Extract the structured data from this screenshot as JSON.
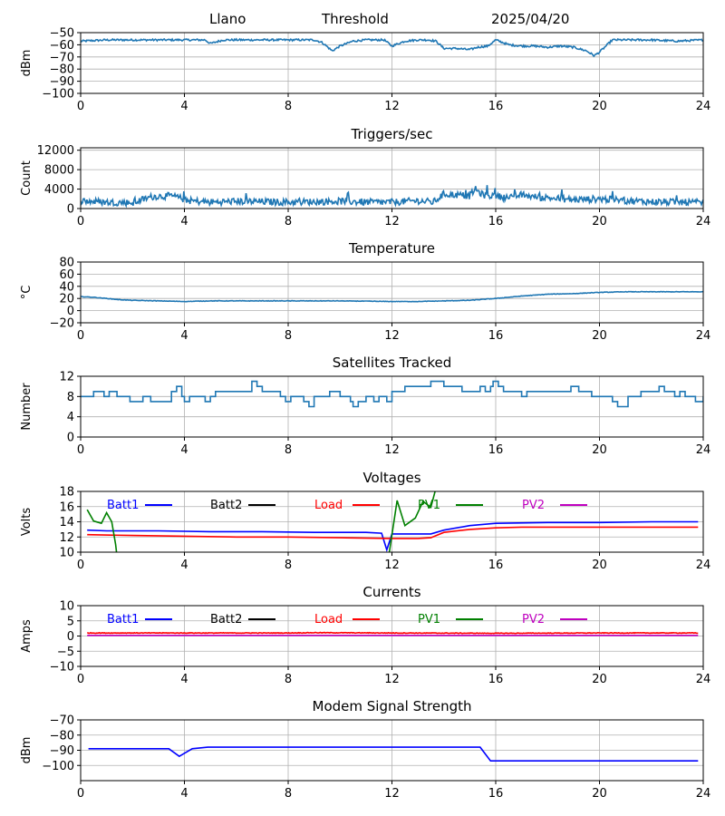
{
  "header": {
    "station": "Llano",
    "mode": "Threshold",
    "date": "2025/04/20"
  },
  "chart_data": [
    {
      "type": "line",
      "title": "",
      "ylabel": "dBm",
      "xlim": [
        0,
        24
      ],
      "ylim": [
        -100,
        -50
      ],
      "xticks": [
        0,
        4,
        8,
        12,
        16,
        20,
        24
      ],
      "yticks": [
        -50,
        -60,
        -70,
        -80,
        -90,
        -100
      ],
      "grid": true,
      "series": [
        {
          "color": "#1f77b4",
          "noise": 0.8,
          "x": [
            0,
            1,
            2,
            3,
            4,
            4.8,
            5,
            5.5,
            6,
            7,
            8,
            9,
            9.3,
            9.7,
            10,
            10.5,
            11,
            11.7,
            12,
            12.5,
            13,
            13.4,
            13.7,
            14,
            14.5,
            15,
            15.3,
            15.7,
            16,
            16.5,
            17,
            17.5,
            18,
            18.5,
            19,
            19.5,
            19.8,
            20,
            20.5,
            21,
            22,
            23,
            24
          ],
          "y": [
            -57,
            -56,
            -56,
            -56,
            -56,
            -56,
            -59,
            -56,
            -56,
            -56,
            -56,
            -56,
            -58,
            -65,
            -61,
            -57,
            -56,
            -56,
            -61,
            -57,
            -56,
            -56,
            -57,
            -63,
            -63,
            -64,
            -62,
            -61,
            -56,
            -60,
            -61,
            -61,
            -62,
            -61,
            -62,
            -65,
            -69,
            -66,
            -56,
            -56,
            -56,
            -57,
            -56
          ]
        }
      ]
    },
    {
      "type": "line",
      "title": "Triggers/sec",
      "ylabel": "Count",
      "xlim": [
        0,
        24
      ],
      "ylim": [
        0,
        12500
      ],
      "xticks": [
        0,
        4,
        8,
        12,
        16,
        20,
        24
      ],
      "yticks": [
        0,
        4000,
        8000,
        12000
      ],
      "grid": true,
      "series": [
        {
          "color": "#1f77b4",
          "noise": 700,
          "x": [
            0,
            1,
            2,
            2.8,
            3.5,
            4.2,
            5,
            6,
            7,
            8,
            9,
            10,
            11,
            12,
            13,
            13.6,
            14,
            14.5,
            15,
            15.2,
            15.5,
            16,
            16.5,
            17,
            17.5,
            18,
            19,
            20,
            21,
            22,
            23,
            24
          ],
          "y": [
            1600,
            1300,
            1200,
            2500,
            2600,
            1600,
            1300,
            1500,
            1400,
            1300,
            1400,
            1500,
            1300,
            1300,
            1600,
            1300,
            3000,
            2800,
            2600,
            4000,
            2800,
            2600,
            2200,
            2800,
            2400,
            2200,
            1800,
            2000,
            1600,
            1400,
            1300,
            1200
          ]
        }
      ]
    },
    {
      "type": "line",
      "title": "Temperature",
      "ylabel": "°C",
      "xlim": [
        0,
        24
      ],
      "ylim": [
        -20,
        80
      ],
      "xticks": [
        0,
        4,
        8,
        12,
        16,
        20,
        24
      ],
      "yticks": [
        -20,
        0,
        20,
        40,
        60,
        80
      ],
      "grid": true,
      "series": [
        {
          "color": "#1f77b4",
          "noise": 0.4,
          "x": [
            0,
            0.5,
            1,
            1.5,
            2,
            3,
            4,
            5,
            6,
            8,
            10,
            12,
            13,
            14,
            15,
            16,
            17,
            18,
            19,
            20,
            21,
            22,
            23,
            24
          ],
          "y": [
            23,
            22,
            20,
            18,
            17,
            16,
            15,
            16,
            16,
            16,
            16,
            15,
            15,
            16,
            17,
            20,
            24,
            27,
            28,
            30,
            31,
            31,
            31,
            31
          ]
        }
      ]
    },
    {
      "type": "line",
      "title": "Satellites Tracked",
      "ylabel": "Number",
      "xlim": [
        0,
        24
      ],
      "ylim": [
        0,
        12
      ],
      "xticks": [
        0,
        4,
        8,
        12,
        16,
        20,
        24
      ],
      "yticks": [
        0,
        4,
        8,
        12
      ],
      "grid": true,
      "step": true,
      "series": [
        {
          "color": "#1f77b4",
          "x": [
            0,
            0.3,
            0.5,
            0.9,
            1.1,
            1.4,
            1.9,
            2.4,
            2.7,
            3.5,
            3.7,
            3.9,
            4.0,
            4.2,
            4.8,
            5,
            5.2,
            6.0,
            6.6,
            6.8,
            7.0,
            7.2,
            7.7,
            7.9,
            8.1,
            8.4,
            8.6,
            8.8,
            9.0,
            9.2,
            9.6,
            10,
            10.4,
            10.5,
            10.7,
            11,
            11.3,
            11.5,
            11.8,
            12,
            12.2,
            12.5,
            13.0,
            13.5,
            13.6,
            14,
            14.7,
            15.0,
            15.4,
            15.6,
            15.8,
            15.9,
            16.1,
            16.3,
            16.6,
            17.0,
            17.2,
            17.4,
            18.0,
            18.5,
            18.9,
            19.2,
            19.7,
            20.2,
            20.5,
            20.7,
            21.1,
            21.6,
            22.3,
            22.5,
            22.9,
            23.1,
            23.3,
            23.7,
            24
          ],
          "y": [
            8,
            8,
            9,
            8,
            9,
            8,
            7,
            8,
            7,
            9,
            10,
            8,
            7,
            8,
            7,
            8,
            9,
            9,
            11,
            10,
            9,
            9,
            8,
            7,
            8,
            8,
            7,
            6,
            8,
            8,
            9,
            8,
            7,
            6,
            7,
            8,
            7,
            8,
            7,
            9,
            9,
            10,
            10,
            11,
            11,
            10,
            9,
            9,
            10,
            9,
            10,
            11,
            10,
            9,
            9,
            8,
            9,
            9,
            9,
            9,
            10,
            9,
            8,
            8,
            7,
            6,
            8,
            9,
            10,
            9,
            8,
            9,
            8,
            7,
            8
          ]
        }
      ]
    },
    {
      "type": "line",
      "title": "Voltages",
      "ylabel": "Volts",
      "xlim": [
        0,
        24
      ],
      "ylim": [
        10,
        18
      ],
      "xticks": [
        0,
        4,
        8,
        12,
        16,
        20,
        24
      ],
      "yticks": [
        10,
        12,
        14,
        16,
        18
      ],
      "grid": true,
      "legend": [
        "Batt1",
        "Batt2",
        "Load",
        "PV1",
        "PV2"
      ],
      "series": [
        {
          "name": "Batt1",
          "color": "#0000ff",
          "x": [
            0.25,
            1,
            3,
            5,
            7,
            9,
            11,
            11.6,
            11.8,
            12,
            13,
            13.5,
            14,
            15,
            16,
            18,
            20,
            22,
            23.8
          ],
          "y": [
            12.9,
            12.8,
            12.8,
            12.7,
            12.7,
            12.6,
            12.6,
            12.5,
            10.3,
            12.4,
            12.4,
            12.4,
            12.9,
            13.5,
            13.8,
            13.9,
            13.9,
            14.0,
            14.0
          ]
        },
        {
          "name": "Batt2",
          "color": "#000000",
          "x": [],
          "y": []
        },
        {
          "name": "Load",
          "color": "#ff0000",
          "x": [
            0.25,
            2,
            4,
            6,
            8,
            10,
            12,
            13,
            13.5,
            14,
            15,
            16,
            17,
            20,
            23.8
          ],
          "y": [
            12.3,
            12.2,
            12.1,
            12.0,
            12.0,
            11.9,
            11.8,
            11.8,
            11.9,
            12.6,
            13.0,
            13.2,
            13.3,
            13.3,
            13.3
          ]
        },
        {
          "name": "PV1",
          "color": "#008000",
          "x": [
            0.25,
            0.5,
            0.8,
            1,
            1.2,
            1.35,
            1.45,
            11.7,
            11.9,
            12.2,
            12.5,
            12.9,
            13.2,
            13.5,
            13.7
          ],
          "y": [
            15.6,
            14.1,
            13.8,
            15.2,
            14.0,
            11.0,
            8.0,
            8.0,
            10.0,
            16.8,
            13.5,
            14.5,
            16.7,
            15.9,
            18.5
          ]
        },
        {
          "name": "PV2",
          "color": "#bf00bf",
          "x": [],
          "y": []
        }
      ]
    },
    {
      "type": "line",
      "title": "Currents",
      "ylabel": "Amps",
      "xlim": [
        0,
        24
      ],
      "ylim": [
        -10,
        10
      ],
      "xticks": [
        0,
        4,
        8,
        12,
        16,
        20,
        24
      ],
      "yticks": [
        -10,
        -5,
        0,
        5,
        10
      ],
      "grid": true,
      "legend": [
        "Batt1",
        "Batt2",
        "Load",
        "PV1",
        "PV2"
      ],
      "series": [
        {
          "name": "Batt1",
          "color": "#0000ff",
          "x": [],
          "y": []
        },
        {
          "name": "Batt2",
          "color": "#000000",
          "x": [],
          "y": []
        },
        {
          "name": "Load",
          "color": "#ff0000",
          "noise": 0.1,
          "x": [
            0.25,
            4,
            8,
            9,
            12,
            16,
            20,
            23.8
          ],
          "y": [
            1.0,
            1.0,
            1.0,
            1.1,
            1.0,
            0.9,
            1.0,
            1.0
          ]
        },
        {
          "name": "PV1",
          "color": "#008000",
          "x": [],
          "y": []
        },
        {
          "name": "PV2",
          "color": "#bf00bf",
          "x": [
            0.25,
            23.8
          ],
          "y": [
            0.2,
            0.2
          ]
        }
      ]
    },
    {
      "type": "line",
      "title": "Modem Signal Strength",
      "ylabel": "dBm",
      "xlim": [
        0,
        24
      ],
      "ylim": [
        -110,
        -70
      ],
      "xticks": [
        0,
        4,
        8,
        12,
        16,
        20,
        24
      ],
      "yticks": [
        -70,
        -80,
        -90,
        -100
      ],
      "grid": true,
      "series": [
        {
          "color": "#0000ff",
          "x": [
            0.3,
            3.4,
            3.8,
            4.3,
            4.9,
            8,
            12,
            15.4,
            15.8,
            20,
            23.8
          ],
          "y": [
            -89,
            -89,
            -94,
            -89,
            -88,
            -88,
            -88,
            -88,
            -97,
            -97,
            -97
          ]
        }
      ]
    }
  ]
}
